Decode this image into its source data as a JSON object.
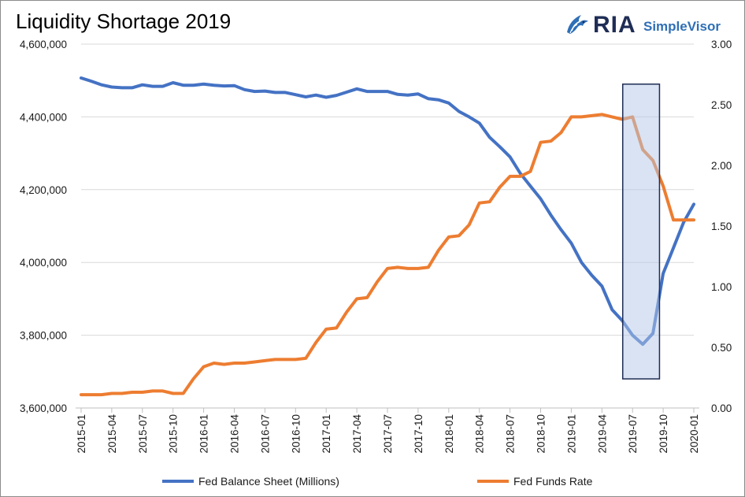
{
  "header": {
    "title": "Liquidity Shortage 2019",
    "logo_main": "RIA",
    "logo_sub": "SimpleVisor"
  },
  "chart_data": {
    "type": "line",
    "title": "Liquidity Shortage 2019",
    "x_labels": [
      "2015-01",
      "2015-04",
      "2015-07",
      "2015-10",
      "2016-01",
      "2016-04",
      "2016-07",
      "2016-10",
      "2017-01",
      "2017-04",
      "2017-07",
      "2017-10",
      "2018-01",
      "2018-04",
      "2018-07",
      "2018-10",
      "2019-01",
      "2019-04",
      "2019-07",
      "2019-10",
      "2020-01"
    ],
    "y_left": {
      "ylim": [
        3600000,
        4600000
      ],
      "ticks": [
        3600000,
        3800000,
        4000000,
        4200000,
        4400000,
        4600000
      ],
      "tick_labels": [
        "3,600,000",
        "3,800,000",
        "4,000,000",
        "4,200,000",
        "4,400,000",
        "4,600,000"
      ]
    },
    "y_right": {
      "ylim": [
        0,
        3
      ],
      "ticks": [
        0,
        0.5,
        1,
        1.5,
        2,
        2.5,
        3
      ],
      "tick_labels": [
        "0.00",
        "0.50",
        "1.00",
        "1.50",
        "2.00",
        "2.50",
        "3.00"
      ]
    },
    "grid": "horizontal",
    "legend_position": "bottom",
    "series": [
      {
        "name": "Fed Balance Sheet (Millions)",
        "axis": "left",
        "color": "#4472c4",
        "values": [
          4507000,
          4498000,
          4488000,
          4482000,
          4480000,
          4480000,
          4488000,
          4484000,
          4484000,
          4494000,
          4487000,
          4487000,
          4490000,
          4487000,
          4485000,
          4486000,
          4475000,
          4470000,
          4471000,
          4467000,
          4467000,
          4461000,
          4455000,
          4460000,
          4454000,
          4459000,
          4468000,
          4477000,
          4470000,
          4470000,
          4470000,
          4462000,
          4460000,
          4463000,
          4450000,
          4447000,
          4438000,
          4415000,
          4400000,
          4383000,
          4344000,
          4318000,
          4290000,
          4245000,
          4210000,
          4175000,
          4130000,
          4090000,
          4053000,
          4000000,
          3965000,
          3935000,
          3870000,
          3840000,
          3800000,
          3775000,
          3805000,
          3970000,
          4040000,
          4110000,
          4160000
        ]
      },
      {
        "name": "Fed Funds Rate",
        "axis": "right",
        "color": "#ed7d31",
        "values": [
          0.11,
          0.11,
          0.11,
          0.12,
          0.12,
          0.13,
          0.13,
          0.14,
          0.14,
          0.12,
          0.12,
          0.24,
          0.34,
          0.37,
          0.36,
          0.37,
          0.37,
          0.38,
          0.39,
          0.4,
          0.4,
          0.4,
          0.41,
          0.54,
          0.65,
          0.66,
          0.79,
          0.9,
          0.91,
          1.04,
          1.15,
          1.16,
          1.15,
          1.15,
          1.16,
          1.3,
          1.41,
          1.42,
          1.51,
          1.69,
          1.7,
          1.82,
          1.91,
          1.91,
          1.95,
          2.19,
          2.2,
          2.27,
          2.4,
          2.4,
          2.41,
          2.42,
          2.4,
          2.38,
          2.4,
          2.13,
          2.04,
          1.83,
          1.55,
          1.55,
          1.55
        ]
      }
    ],
    "highlight": {
      "label": "",
      "x_start": 2019.42,
      "x_end": 2019.72,
      "y_from": 3680000,
      "y_to": 4490000
    }
  },
  "legend": {
    "items": [
      {
        "label": "Fed Balance Sheet (Millions)",
        "color": "#4472c4"
      },
      {
        "label": "Fed Funds Rate",
        "color": "#ed7d31"
      }
    ]
  }
}
